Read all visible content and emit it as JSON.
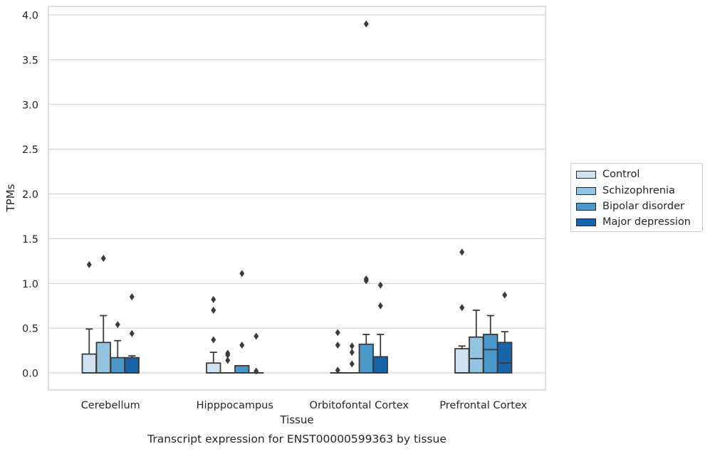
{
  "chart_data": {
    "type": "box",
    "title": "Transcript expression for ENST00000599363 by tissue",
    "xlabel": "Tissue",
    "ylabel": "TPMs",
    "ylim": [
      -0.19,
      4.1
    ],
    "yticks": [
      "0.0",
      "0.5",
      "1.0",
      "1.5",
      "2.0",
      "2.5",
      "3.0",
      "3.5",
      "4.0"
    ],
    "categories": [
      "Cerebellum",
      "Hipppocampus",
      "Orbitofontal Cortex",
      "Prefrontal Cortex"
    ],
    "grid": true,
    "legend_position": "right",
    "series": [
      {
        "name": "Control",
        "color": "#d0e1f2",
        "boxes": [
          {
            "min": 0.0,
            "q1": 0.0,
            "median": 0.0,
            "q3": 0.21,
            "max": 0.49,
            "outliers": [
              1.21
            ]
          },
          {
            "min": 0.0,
            "q1": 0.0,
            "median": 0.0,
            "q3": 0.11,
            "max": 0.23,
            "outliers": [
              0.37,
              0.7,
              0.82
            ]
          },
          {
            "min": 0.0,
            "q1": 0.0,
            "median": 0.0,
            "q3": 0.0,
            "max": 0.0,
            "outliers": [
              0.03,
              0.31,
              0.45
            ]
          },
          {
            "min": 0.0,
            "q1": 0.0,
            "median": 0.0,
            "q3": 0.27,
            "max": 0.3,
            "outliers": [
              0.73,
              1.35
            ]
          }
        ]
      },
      {
        "name": "Schizophrenia",
        "color": "#94c4df",
        "boxes": [
          {
            "min": 0.0,
            "q1": 0.0,
            "median": 0.0,
            "q3": 0.34,
            "max": 0.64,
            "outliers": [
              1.28
            ]
          },
          {
            "min": 0.0,
            "q1": 0.0,
            "median": 0.0,
            "q3": 0.0,
            "max": 0.0,
            "outliers": [
              0.14,
              0.2,
              0.22
            ]
          },
          {
            "min": 0.0,
            "q1": 0.0,
            "median": 0.0,
            "q3": 0.0,
            "max": 0.0,
            "outliers": [
              0.1,
              0.23,
              0.3
            ]
          },
          {
            "min": 0.0,
            "q1": 0.0,
            "median": 0.16,
            "q3": 0.4,
            "max": 0.7,
            "outliers": []
          }
        ]
      },
      {
        "name": "Bipolar disorder",
        "color": "#4a98c9",
        "boxes": [
          {
            "min": 0.0,
            "q1": 0.0,
            "median": 0.0,
            "q3": 0.17,
            "max": 0.36,
            "outliers": [
              0.54
            ]
          },
          {
            "min": 0.0,
            "q1": 0.0,
            "median": 0.0,
            "q3": 0.08,
            "max": 0.08,
            "outliers": [
              0.31,
              1.11
            ]
          },
          {
            "min": 0.0,
            "q1": 0.0,
            "median": 0.0,
            "q3": 0.32,
            "max": 0.43,
            "outliers": [
              1.03,
              1.05,
              3.9
            ]
          },
          {
            "min": 0.0,
            "q1": 0.0,
            "median": 0.26,
            "q3": 0.43,
            "max": 0.64,
            "outliers": []
          }
        ]
      },
      {
        "name": "Major depression",
        "color": "#1764ab",
        "boxes": [
          {
            "min": 0.0,
            "q1": 0.0,
            "median": 0.0,
            "q3": 0.17,
            "max": 0.19,
            "outliers": [
              0.44,
              0.85
            ]
          },
          {
            "min": 0.0,
            "q1": 0.0,
            "median": 0.0,
            "q3": 0.0,
            "max": 0.0,
            "outliers": [
              0.02,
              0.41
            ]
          },
          {
            "min": 0.0,
            "q1": 0.0,
            "median": 0.0,
            "q3": 0.18,
            "max": 0.43,
            "outliers": [
              0.75,
              0.98
            ]
          },
          {
            "min": 0.0,
            "q1": 0.0,
            "median": 0.11,
            "q3": 0.34,
            "max": 0.46,
            "outliers": [
              0.87
            ]
          }
        ]
      }
    ]
  }
}
